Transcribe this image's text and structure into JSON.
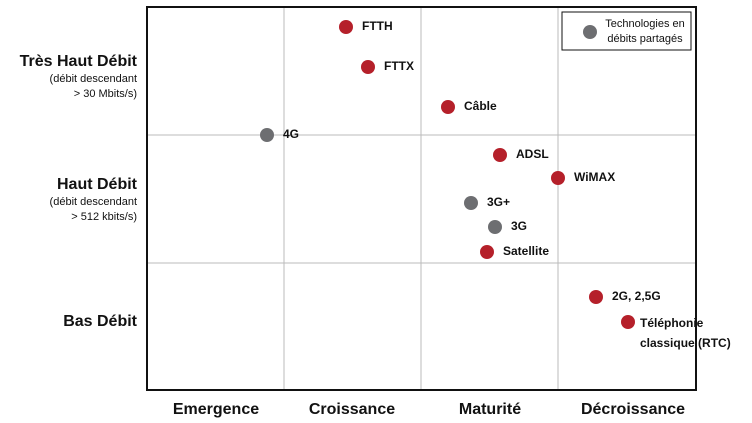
{
  "columns": [
    "Emergence",
    "Croissance",
    "Maturité",
    "Décroissance"
  ],
  "rows": [
    {
      "title": "Très Haut Débit",
      "note": [
        "(débit descendant",
        "> 30 Mbits/s)"
      ]
    },
    {
      "title": "Haut Débit",
      "note": [
        "(débit descendant",
        "> 512 kbits/s)"
      ]
    },
    {
      "title": "Bas Débit",
      "note": []
    }
  ],
  "legend": {
    "label": [
      "Technologies en",
      "débits partagés"
    ]
  },
  "nodes": [
    {
      "label": [
        "FTTH"
      ],
      "shared": false
    },
    {
      "label": [
        "FTTX"
      ],
      "shared": false
    },
    {
      "label": [
        "Câble"
      ],
      "shared": false
    },
    {
      "label": [
        "4G"
      ],
      "shared": true
    },
    {
      "label": [
        "ADSL"
      ],
      "shared": false
    },
    {
      "label": [
        "WiMAX"
      ],
      "shared": false
    },
    {
      "label": [
        "3G+"
      ],
      "shared": true
    },
    {
      "label": [
        "3G"
      ],
      "shared": true
    },
    {
      "label": [
        "Satellite"
      ],
      "shared": false
    },
    {
      "label": [
        "2G, 2,5G"
      ],
      "shared": false
    },
    {
      "label": [
        "Téléphonie",
        "classique (RTC)"
      ],
      "shared": false
    }
  ]
}
